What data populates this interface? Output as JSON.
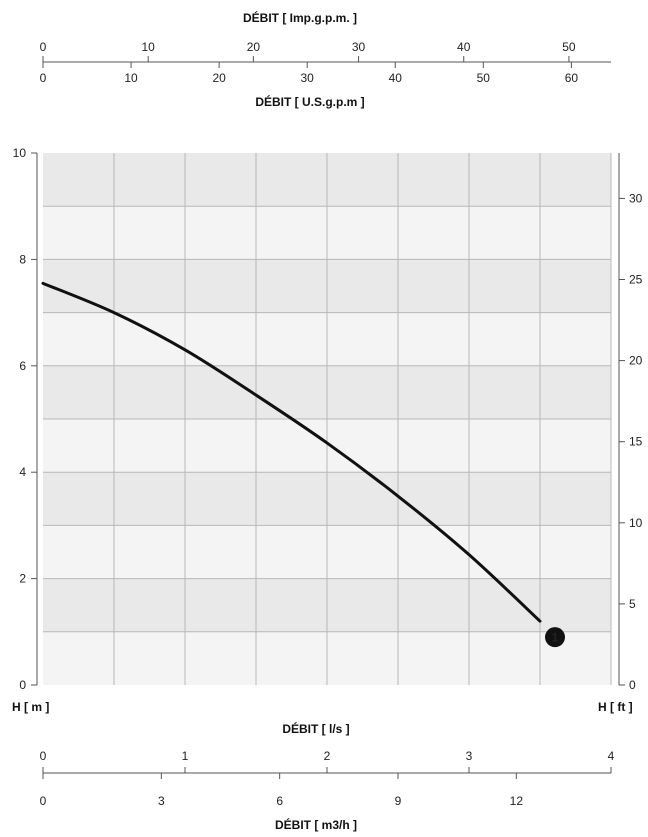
{
  "chart_data": {
    "type": "line",
    "top_axis_1": {
      "label": "DÉBIT [ Imp.g.p.m. ]",
      "ticks": [
        "0",
        "10",
        "20",
        "30",
        "40",
        "50"
      ],
      "max": 54
    },
    "top_axis_2": {
      "label": "DÉBIT [ U.S.g.p.m ]",
      "ticks": [
        "0",
        "10",
        "20",
        "30",
        "40",
        "50",
        "60"
      ],
      "max": 64.5
    },
    "bottom_axis_1": {
      "label": "DÉBIT [ l/s ]",
      "ticks": [
        "0",
        "1",
        "2",
        "3",
        "4"
      ],
      "max": 4
    },
    "bottom_axis_2": {
      "label": "DÉBIT [ m3/h ]",
      "ticks": [
        "0",
        "3",
        "6",
        "9",
        "12"
      ],
      "max": 14.4
    },
    "left_axis": {
      "label": "H [ m ]",
      "ticks": [
        "0",
        "2",
        "4",
        "6",
        "8",
        "10"
      ],
      "ylim": [
        0,
        10
      ]
    },
    "right_axis": {
      "label": "H [ ft ]",
      "ticks": [
        "0",
        "5",
        "10",
        "15",
        "20",
        "25",
        "30"
      ],
      "ylim": [
        0,
        32.8
      ]
    },
    "grid": true,
    "series": [
      {
        "marker_label": "1",
        "x": [
          0,
          0.5,
          1.0,
          1.5,
          2.0,
          2.5,
          3.0,
          3.5
        ],
        "y": [
          7.55,
          7.0,
          6.3,
          5.45,
          4.55,
          3.55,
          2.45,
          1.2
        ]
      }
    ]
  }
}
